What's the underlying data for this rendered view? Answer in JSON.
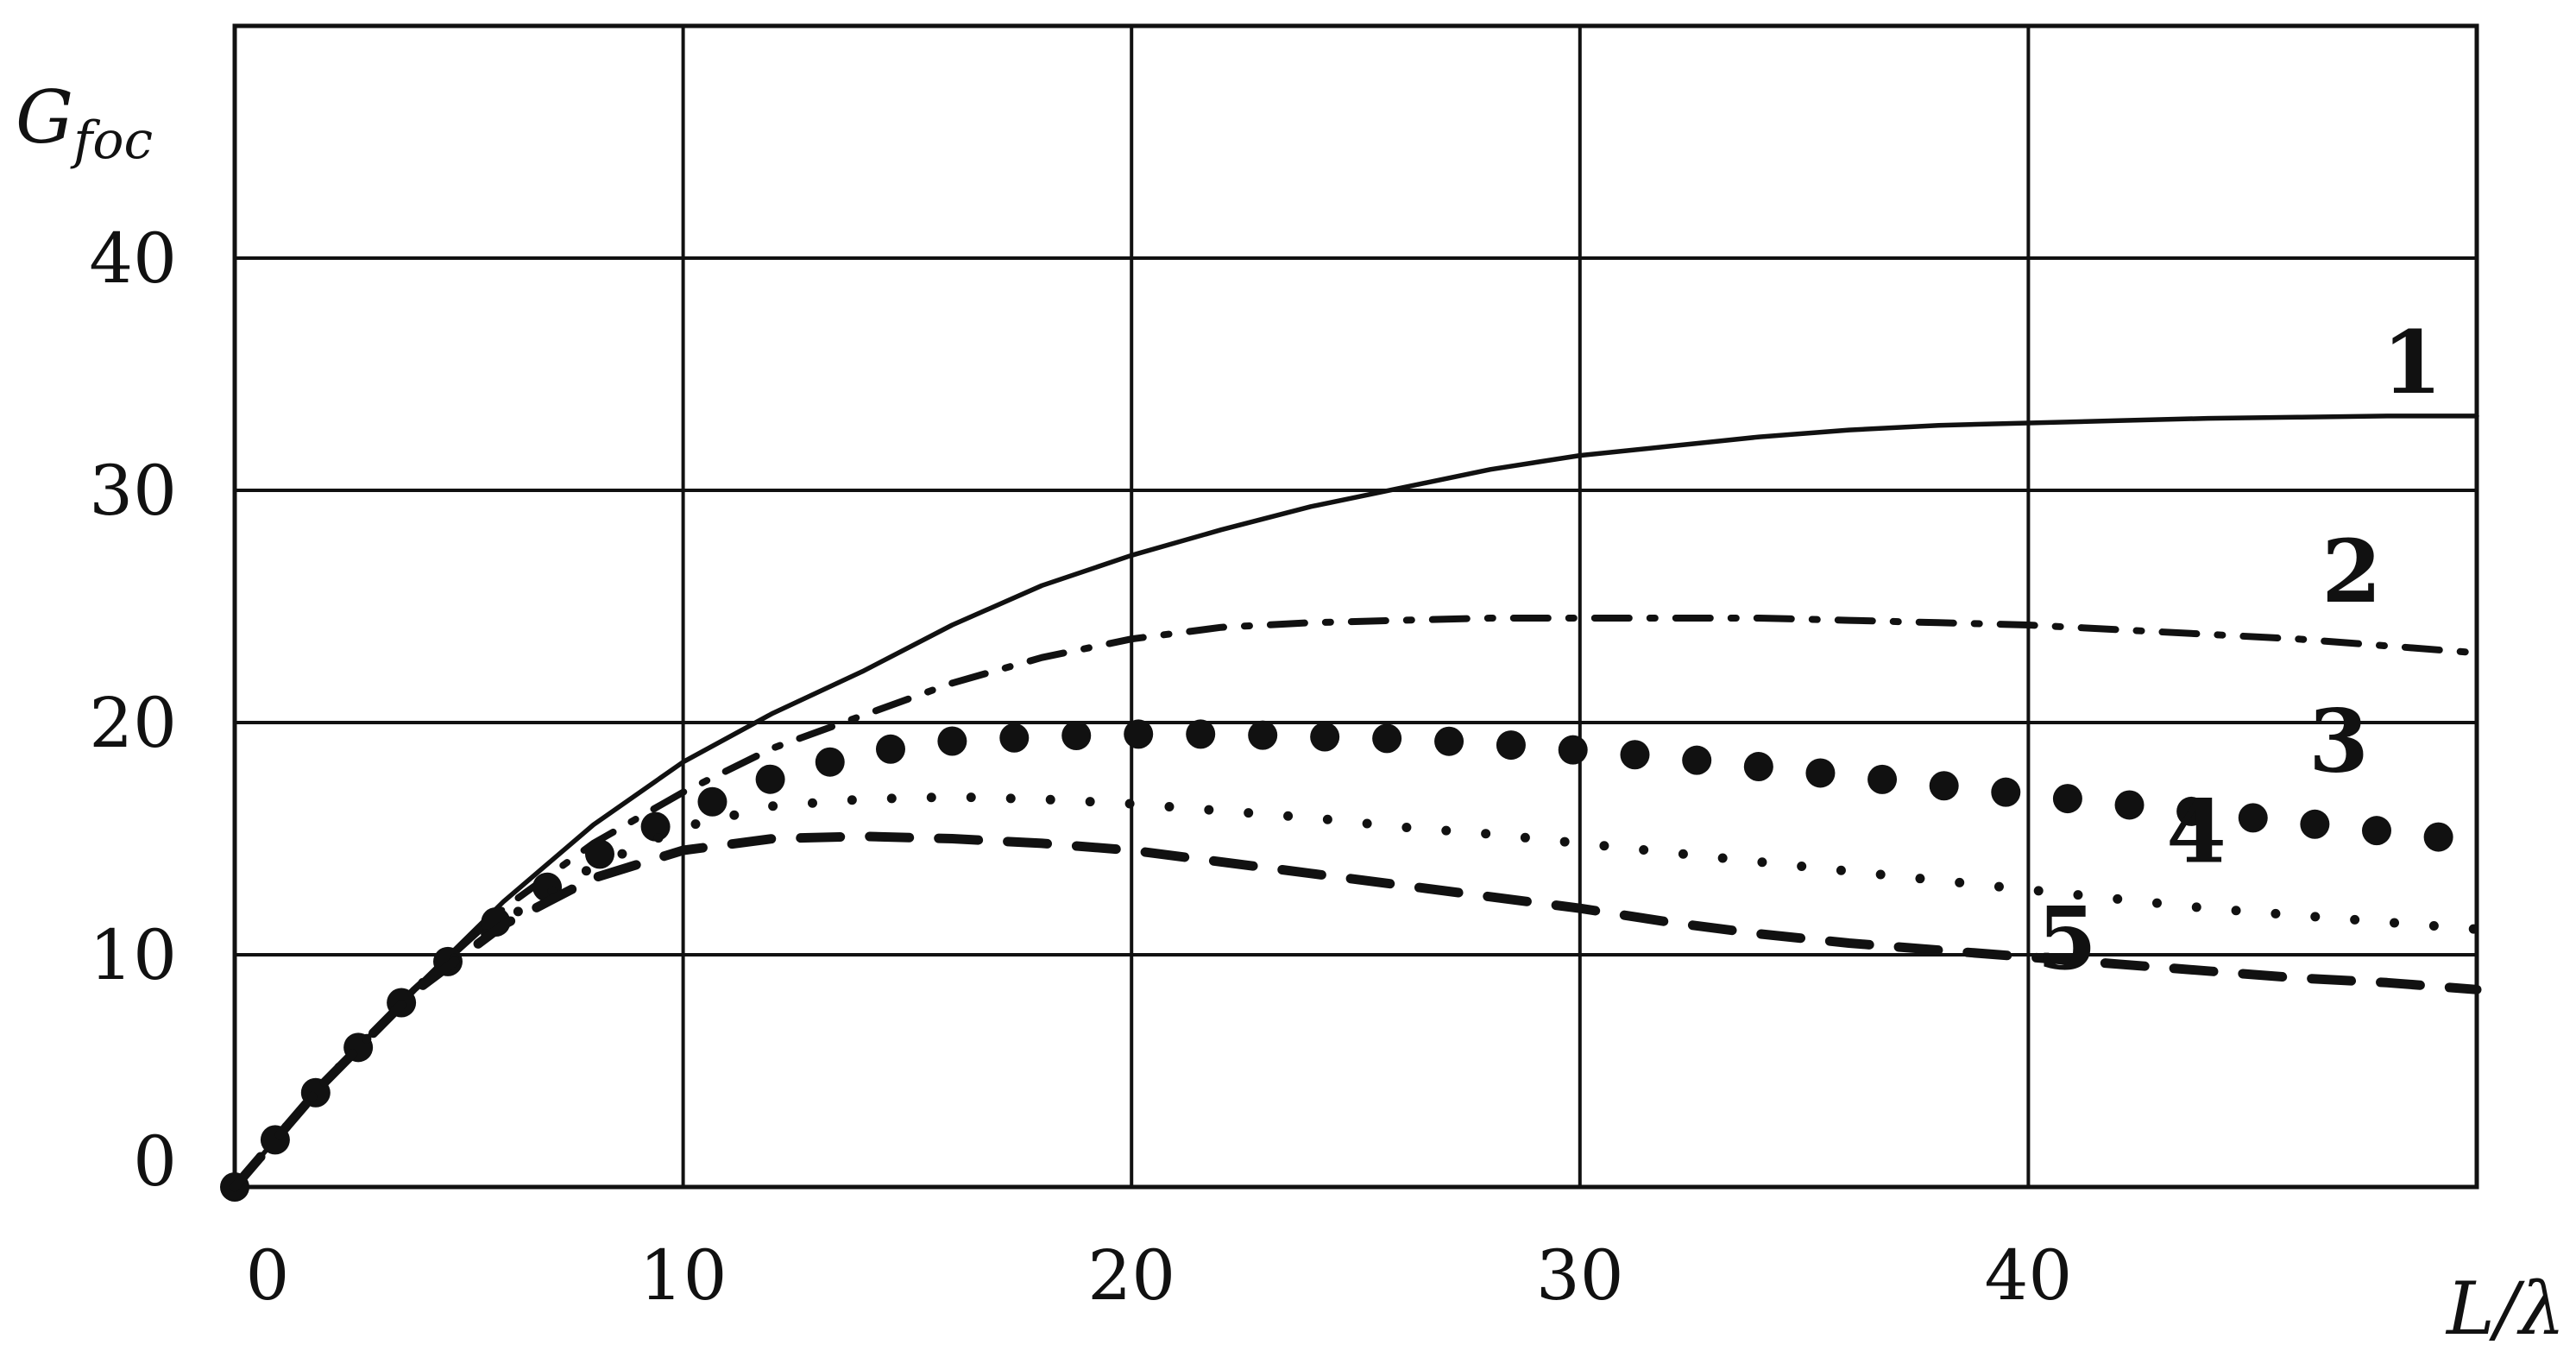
{
  "chart_data": {
    "type": "line",
    "xlabel": "L/λ",
    "ylabel_main": "G",
    "ylabel_sub": "foc",
    "xlim": [
      0,
      50
    ],
    "ylim": [
      0,
      50
    ],
    "x_ticks": [
      "0",
      "10",
      "20",
      "30",
      "40"
    ],
    "y_ticks": [
      "0",
      "10",
      "20",
      "30",
      "40"
    ],
    "grid": true,
    "series": [
      {
        "name": "1",
        "style": "solid",
        "x": [
          0,
          2,
          4,
          6,
          8,
          10,
          12,
          14,
          16,
          18,
          20,
          22,
          24,
          26,
          28,
          30,
          32,
          34,
          36,
          38,
          40,
          42,
          44,
          46,
          48,
          50
        ],
        "values": [
          0,
          4.5,
          8.5,
          12.3,
          15.6,
          18.3,
          20.4,
          22.2,
          24.2,
          25.9,
          27.2,
          28.3,
          29.3,
          30.1,
          30.9,
          31.5,
          31.9,
          32.3,
          32.6,
          32.8,
          32.9,
          33.0,
          33.1,
          33.15,
          33.2,
          33.2
        ]
      },
      {
        "name": "2",
        "style": "dash-dot",
        "x": [
          0,
          2,
          4,
          6,
          8,
          10,
          12,
          14,
          16,
          18,
          20,
          22,
          24,
          26,
          28,
          30,
          32,
          34,
          36,
          38,
          40,
          42,
          44,
          46,
          48,
          50
        ],
        "values": [
          0,
          4.5,
          8.5,
          12.0,
          14.8,
          17.0,
          18.9,
          20.3,
          21.7,
          22.8,
          23.6,
          24.1,
          24.3,
          24.4,
          24.5,
          24.5,
          24.5,
          24.5,
          24.4,
          24.3,
          24.2,
          24.0,
          23.8,
          23.6,
          23.3,
          23.0
        ]
      },
      {
        "name": "3",
        "style": "large-dots",
        "x": [
          0,
          2,
          4,
          6,
          8,
          10,
          12,
          14,
          16,
          18,
          20,
          22,
          24,
          26,
          28,
          30,
          32,
          34,
          36,
          38,
          40,
          42,
          44,
          46,
          48,
          50
        ],
        "values": [
          0,
          4.5,
          8.5,
          11.7,
          14.2,
          16.1,
          17.6,
          18.7,
          19.2,
          19.4,
          19.5,
          19.5,
          19.4,
          19.3,
          19.1,
          18.8,
          18.5,
          18.1,
          17.7,
          17.3,
          16.9,
          16.5,
          16.1,
          15.7,
          15.3,
          14.9
        ]
      },
      {
        "name": "4",
        "style": "small-crosses",
        "x": [
          0,
          2,
          4,
          6,
          8,
          10,
          12,
          14,
          16,
          18,
          20,
          22,
          24,
          26,
          28,
          30,
          32,
          34,
          36,
          38,
          40,
          42,
          44,
          46,
          48,
          50
        ],
        "values": [
          0,
          4.5,
          8.5,
          11.5,
          13.8,
          15.5,
          16.4,
          16.7,
          16.8,
          16.7,
          16.5,
          16.2,
          15.9,
          15.5,
          15.2,
          14.8,
          14.4,
          14.0,
          13.6,
          13.2,
          12.8,
          12.4,
          12.0,
          11.7,
          11.4,
          11.1
        ]
      },
      {
        "name": "5",
        "style": "dashed",
        "x": [
          0,
          2,
          4,
          6,
          8,
          10,
          12,
          14,
          16,
          18,
          20,
          22,
          24,
          26,
          28,
          30,
          32,
          34,
          36,
          38,
          40,
          42,
          44,
          46,
          48,
          50
        ],
        "values": [
          0,
          4.5,
          8.4,
          11.3,
          13.3,
          14.5,
          15.0,
          15.1,
          15.0,
          14.8,
          14.5,
          14.0,
          13.5,
          13.0,
          12.5,
          12.0,
          11.4,
          10.9,
          10.5,
          10.2,
          9.9,
          9.6,
          9.3,
          9.0,
          8.8,
          8.5
        ]
      }
    ]
  }
}
